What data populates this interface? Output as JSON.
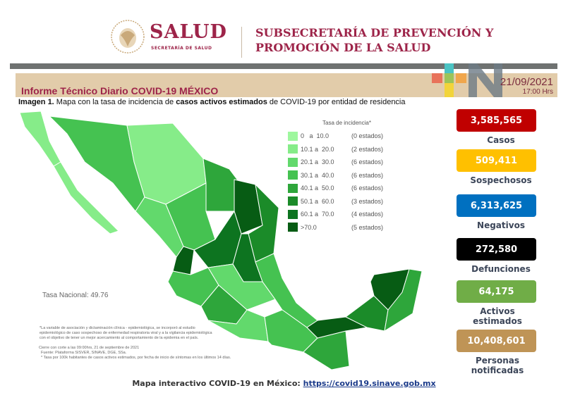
{
  "header": {
    "brand": "SALUD",
    "brand_sub": "SECRETARÍA DE SALUD",
    "subsecretaria_line1": "SUBSECRETARÍA DE PREVENCIÓN Y",
    "subsecretaria_line2": "PROMOCIÓN DE LA SALUD",
    "seal_text": "ESTADOS UNIDOS MEXICANOS"
  },
  "report": {
    "title": "Informe Técnico Diario COVID-19 MÉXICO",
    "date": "21/09/2021",
    "time": "17:00 Hrs",
    "subtitle_bold1": "Imagen 1.",
    "subtitle_text1": " Mapa con la tasa de incidencia de ",
    "subtitle_bold2": "casos activos estimados",
    "subtitle_text2": " de COVID-19 por entidad de residencia"
  },
  "legend": {
    "title": "Tasa de incidencia*",
    "items": [
      {
        "range": "0   a  10.0",
        "count": "(0 estados)",
        "color": "#9ef79e"
      },
      {
        "range": "10.1 a  20.0",
        "count": "(2 estados)",
        "color": "#86ec89"
      },
      {
        "range": "20.1 a  30.0",
        "count": "(6 estados)",
        "color": "#62d96c"
      },
      {
        "range": "30.1 a  40.0",
        "count": "(6 estados)",
        "color": "#45c251"
      },
      {
        "range": "40.1 a  50.0",
        "count": "(6 estados)",
        "color": "#2ea63b"
      },
      {
        "range": "50.1 a  60.0",
        "count": "(3 estados)",
        "color": "#1b8b29"
      },
      {
        "range": "60.1 a  70.0",
        "count": "(4 estados)",
        "color": "#0d7420"
      },
      {
        "range": ">70.0",
        "count": "(5 estados)",
        "color": "#075c14"
      }
    ]
  },
  "tasa_nacional": "Tasa Nacional: 49.76",
  "notes": {
    "n1": "*La variable de asociación y dictaminación clínica - epidemiológica, se incorporó al estudio",
    "n2": "epidemiológico de caso sospechoso de enfermedad respiratoria viral y a la vigilancia epidemiológica",
    "n3": "con el objetivo de tener un mejor acercamiento al comportamiento de la epidemia en el país.",
    "n4": "Cierre con corte a las 09:00hrs, 21 de septiembre de 2021",
    "n5": "Fuente: Plataforma SISVER, SINAVE, DGE, SSa.",
    "n6": "* Tasa por 100k habitantes de casos activos estimados, por fecha de inicio de síntomas en los últimos 14 días."
  },
  "stats": [
    {
      "value": "3,585,565",
      "label": "Casos",
      "color": "#c00000"
    },
    {
      "value": "509,411",
      "label": "Sospechosos",
      "color": "#ffc000"
    },
    {
      "value": "6,313,625",
      "label": "Negativos",
      "color": "#0070c0"
    },
    {
      "value": "272,580",
      "label": "Defunciones",
      "color": "#000000"
    },
    {
      "value": "64,175",
      "label": "Activos estimados",
      "color": "#70ad47"
    },
    {
      "value": "10,408,601",
      "label": "Personas notificadas",
      "color": "#bf9456"
    }
  ],
  "footer": {
    "text": "Mapa interactivo COVID-19 en México: ",
    "link": "https://covid19.sinave.gob.mx"
  }
}
